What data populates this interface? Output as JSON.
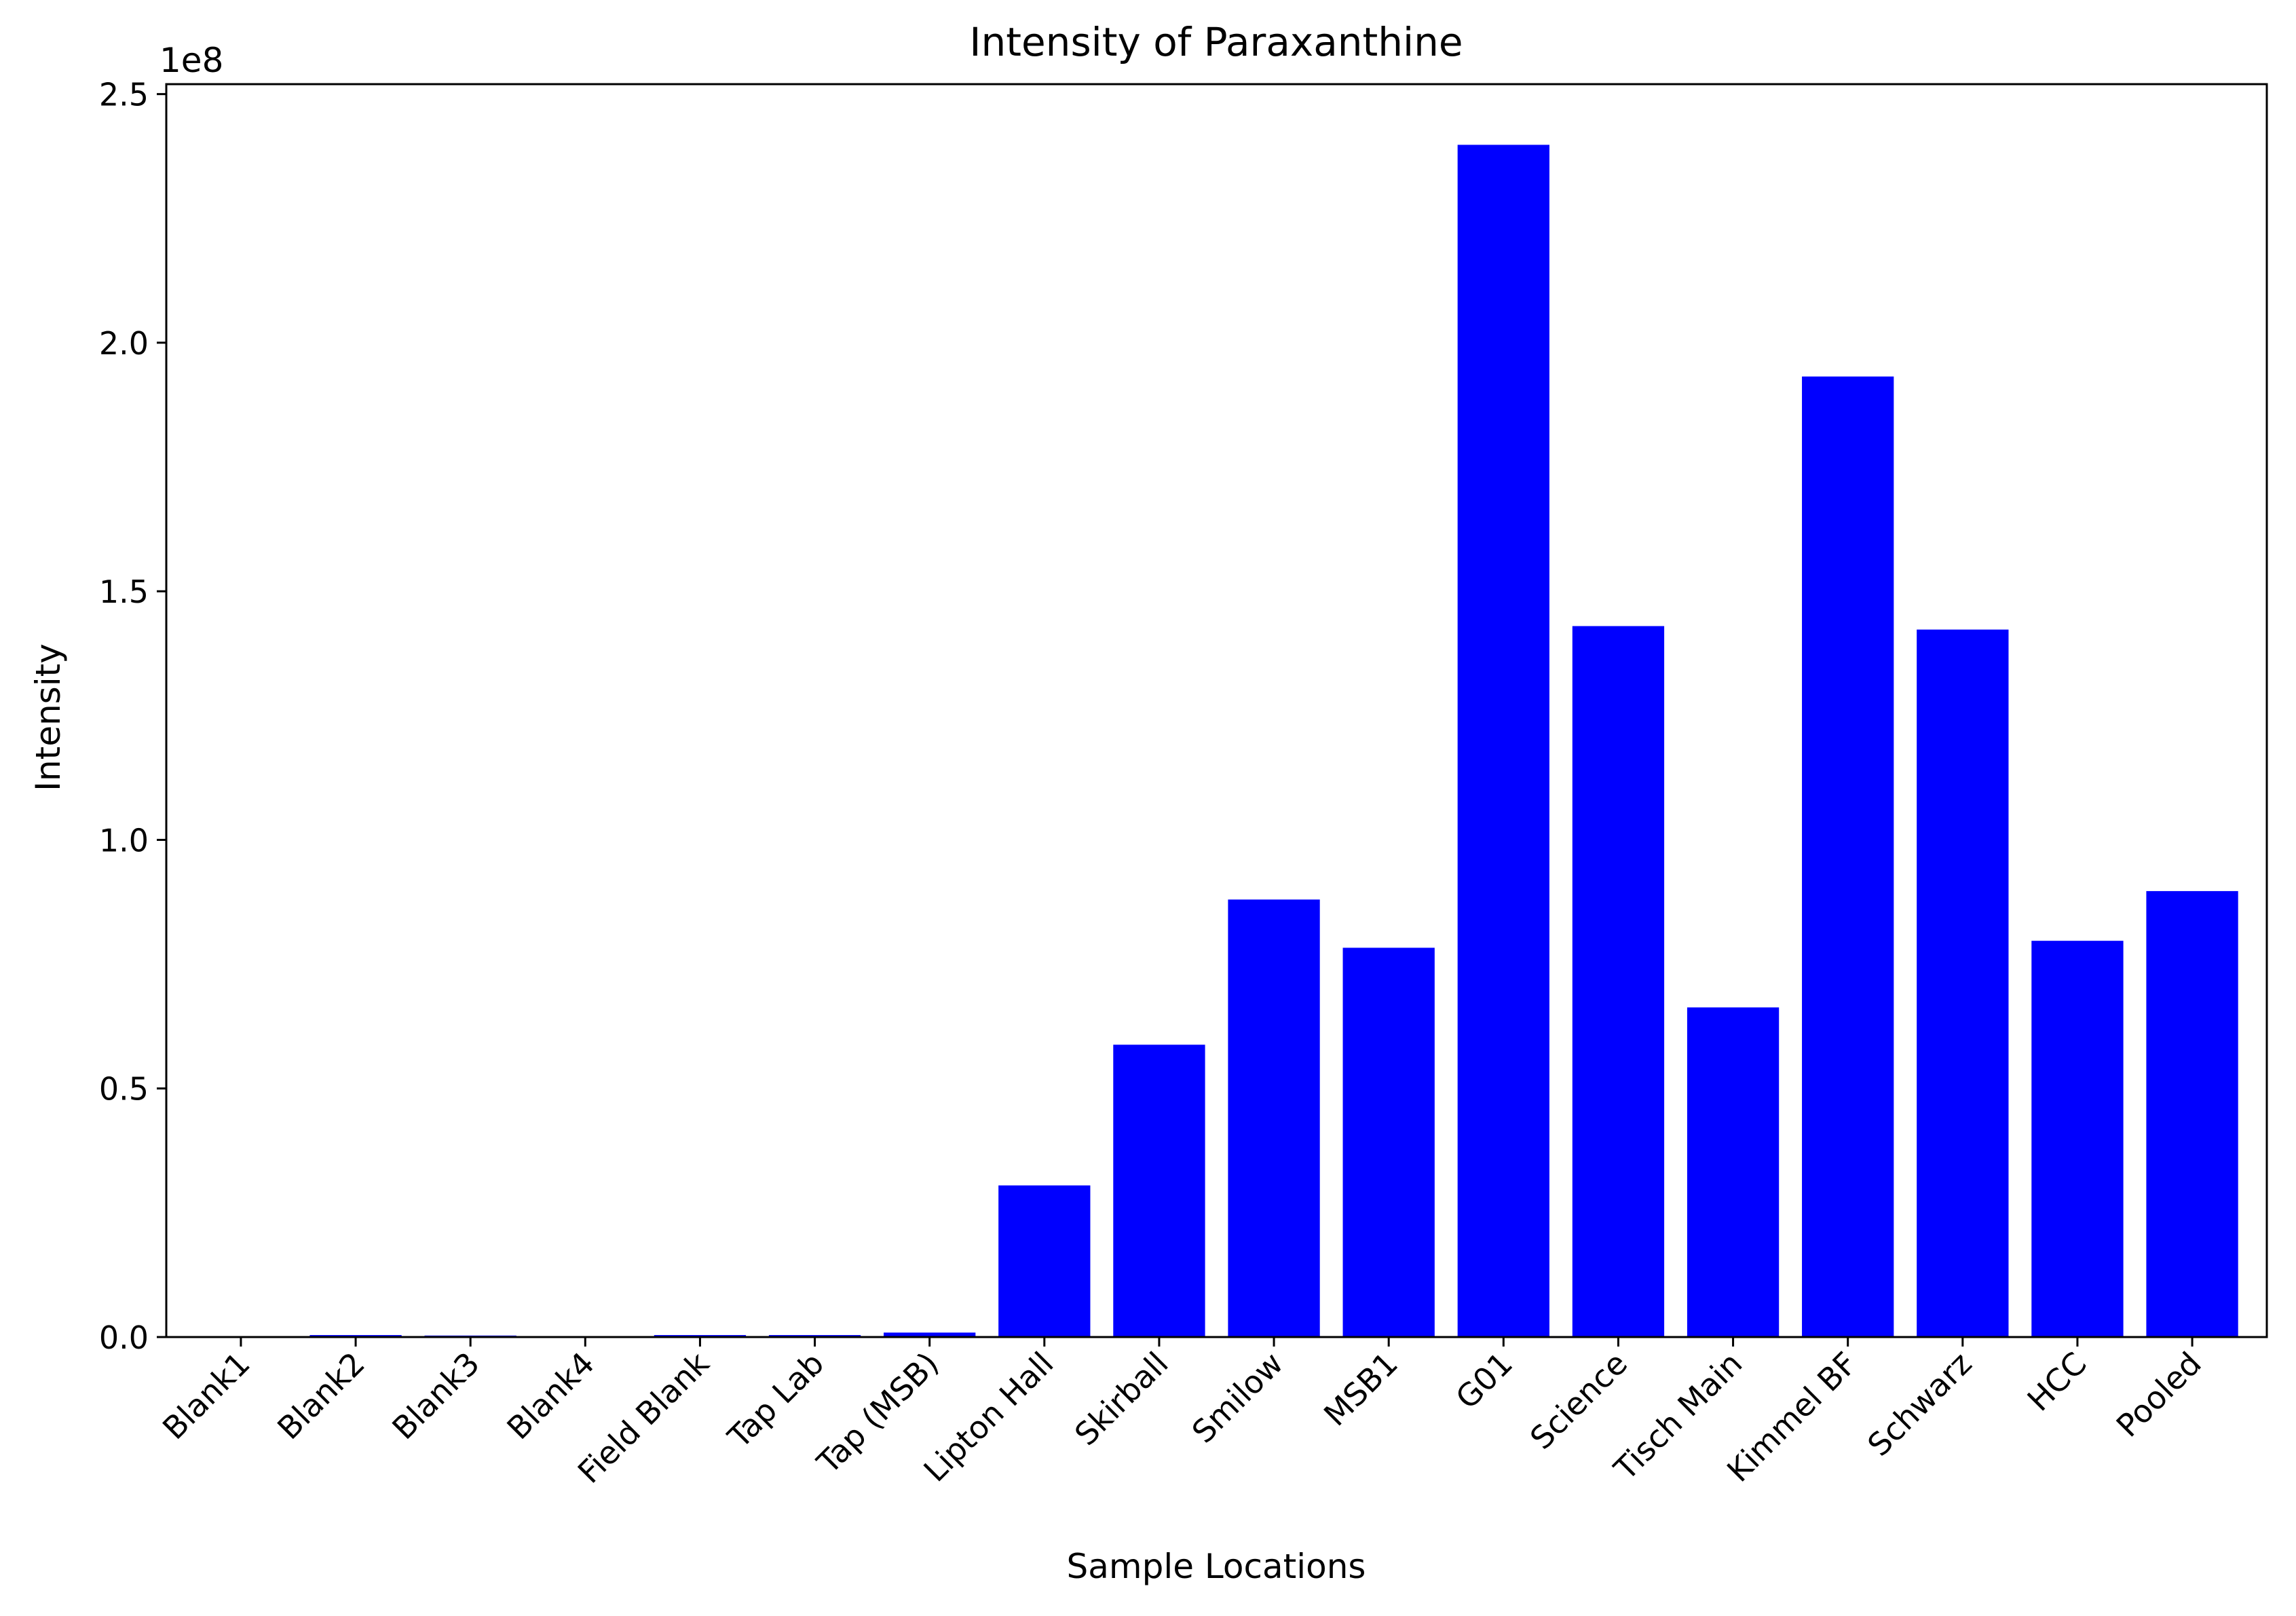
{
  "chart_data": {
    "type": "bar",
    "title": "Intensity of Paraxanthine",
    "xlabel": "Sample Locations",
    "ylabel": "Intensity",
    "y_offset_label": "1e8",
    "ylim": [
      0,
      2.52
    ],
    "y_scale_factor": 100000000,
    "yticks": [
      0.0,
      0.5,
      1.0,
      1.5,
      2.0,
      2.5
    ],
    "ytick_labels": [
      "0.0",
      "0.5",
      "1.0",
      "1.5",
      "2.0",
      "2.5"
    ],
    "grid": false,
    "legend": "none",
    "bar_color": "#0000ff",
    "categories": [
      "Blank1",
      "Blank2",
      "Blank3",
      "Blank4",
      "Field Blank",
      "Tap Lab",
      "Tap (MSB)",
      "Lipton Hall",
      "Skirball",
      "Smilow",
      "MSB1",
      "G01",
      "Science",
      "Tisch Main",
      "Kimmel BF",
      "Schwarz",
      "HCC",
      "Pooled"
    ],
    "values": [
      0.001,
      0.004,
      0.003,
      0.001,
      0.004,
      0.004,
      0.009,
      0.305,
      0.588,
      0.88,
      0.783,
      2.398,
      1.43,
      0.663,
      1.932,
      1.423,
      0.797,
      0.897
    ]
  }
}
